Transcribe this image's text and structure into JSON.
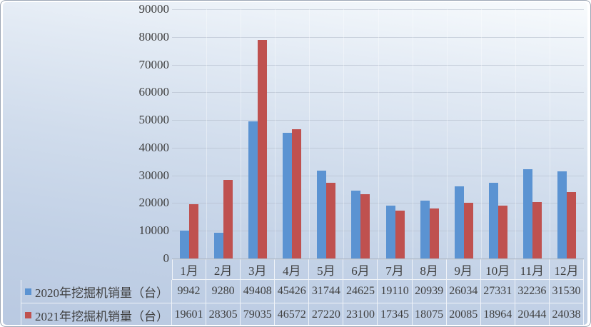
{
  "chart_data": {
    "type": "bar",
    "title": "",
    "categories": [
      "1月",
      "2月",
      "3月",
      "4月",
      "5月",
      "6月",
      "7月",
      "8月",
      "9月",
      "10月",
      "11月",
      "12月"
    ],
    "series": [
      {
        "name": "2020年挖掘机销量（台）",
        "color": "#5B93D2",
        "values": [
          9942,
          9280,
          49408,
          45426,
          31744,
          24625,
          19110,
          20939,
          26034,
          27331,
          32236,
          31530
        ]
      },
      {
        "name": "2021年挖掘机销量（台）",
        "color": "#BF514F",
        "values": [
          19601,
          28305,
          79035,
          46572,
          27220,
          23100,
          17345,
          18075,
          20085,
          18964,
          20444,
          24038
        ]
      }
    ],
    "xlabel": "",
    "ylabel": "",
    "ylim": [
      0,
      90000
    ],
    "yticks": [
      0,
      10000,
      20000,
      30000,
      40000,
      50000,
      60000,
      70000,
      80000,
      90000
    ],
    "grid": true,
    "legend_position": "left-of-data-table",
    "data_table": true
  },
  "colors": {
    "series_2020": "#5B93D2",
    "series_2021": "#BF514F",
    "background_top": "#F8FBFD",
    "background_bottom": "#B9C9E1",
    "text": "#3F3F3F",
    "gridline": "#B0BAC8",
    "cell_border": "#D9E2ED"
  }
}
